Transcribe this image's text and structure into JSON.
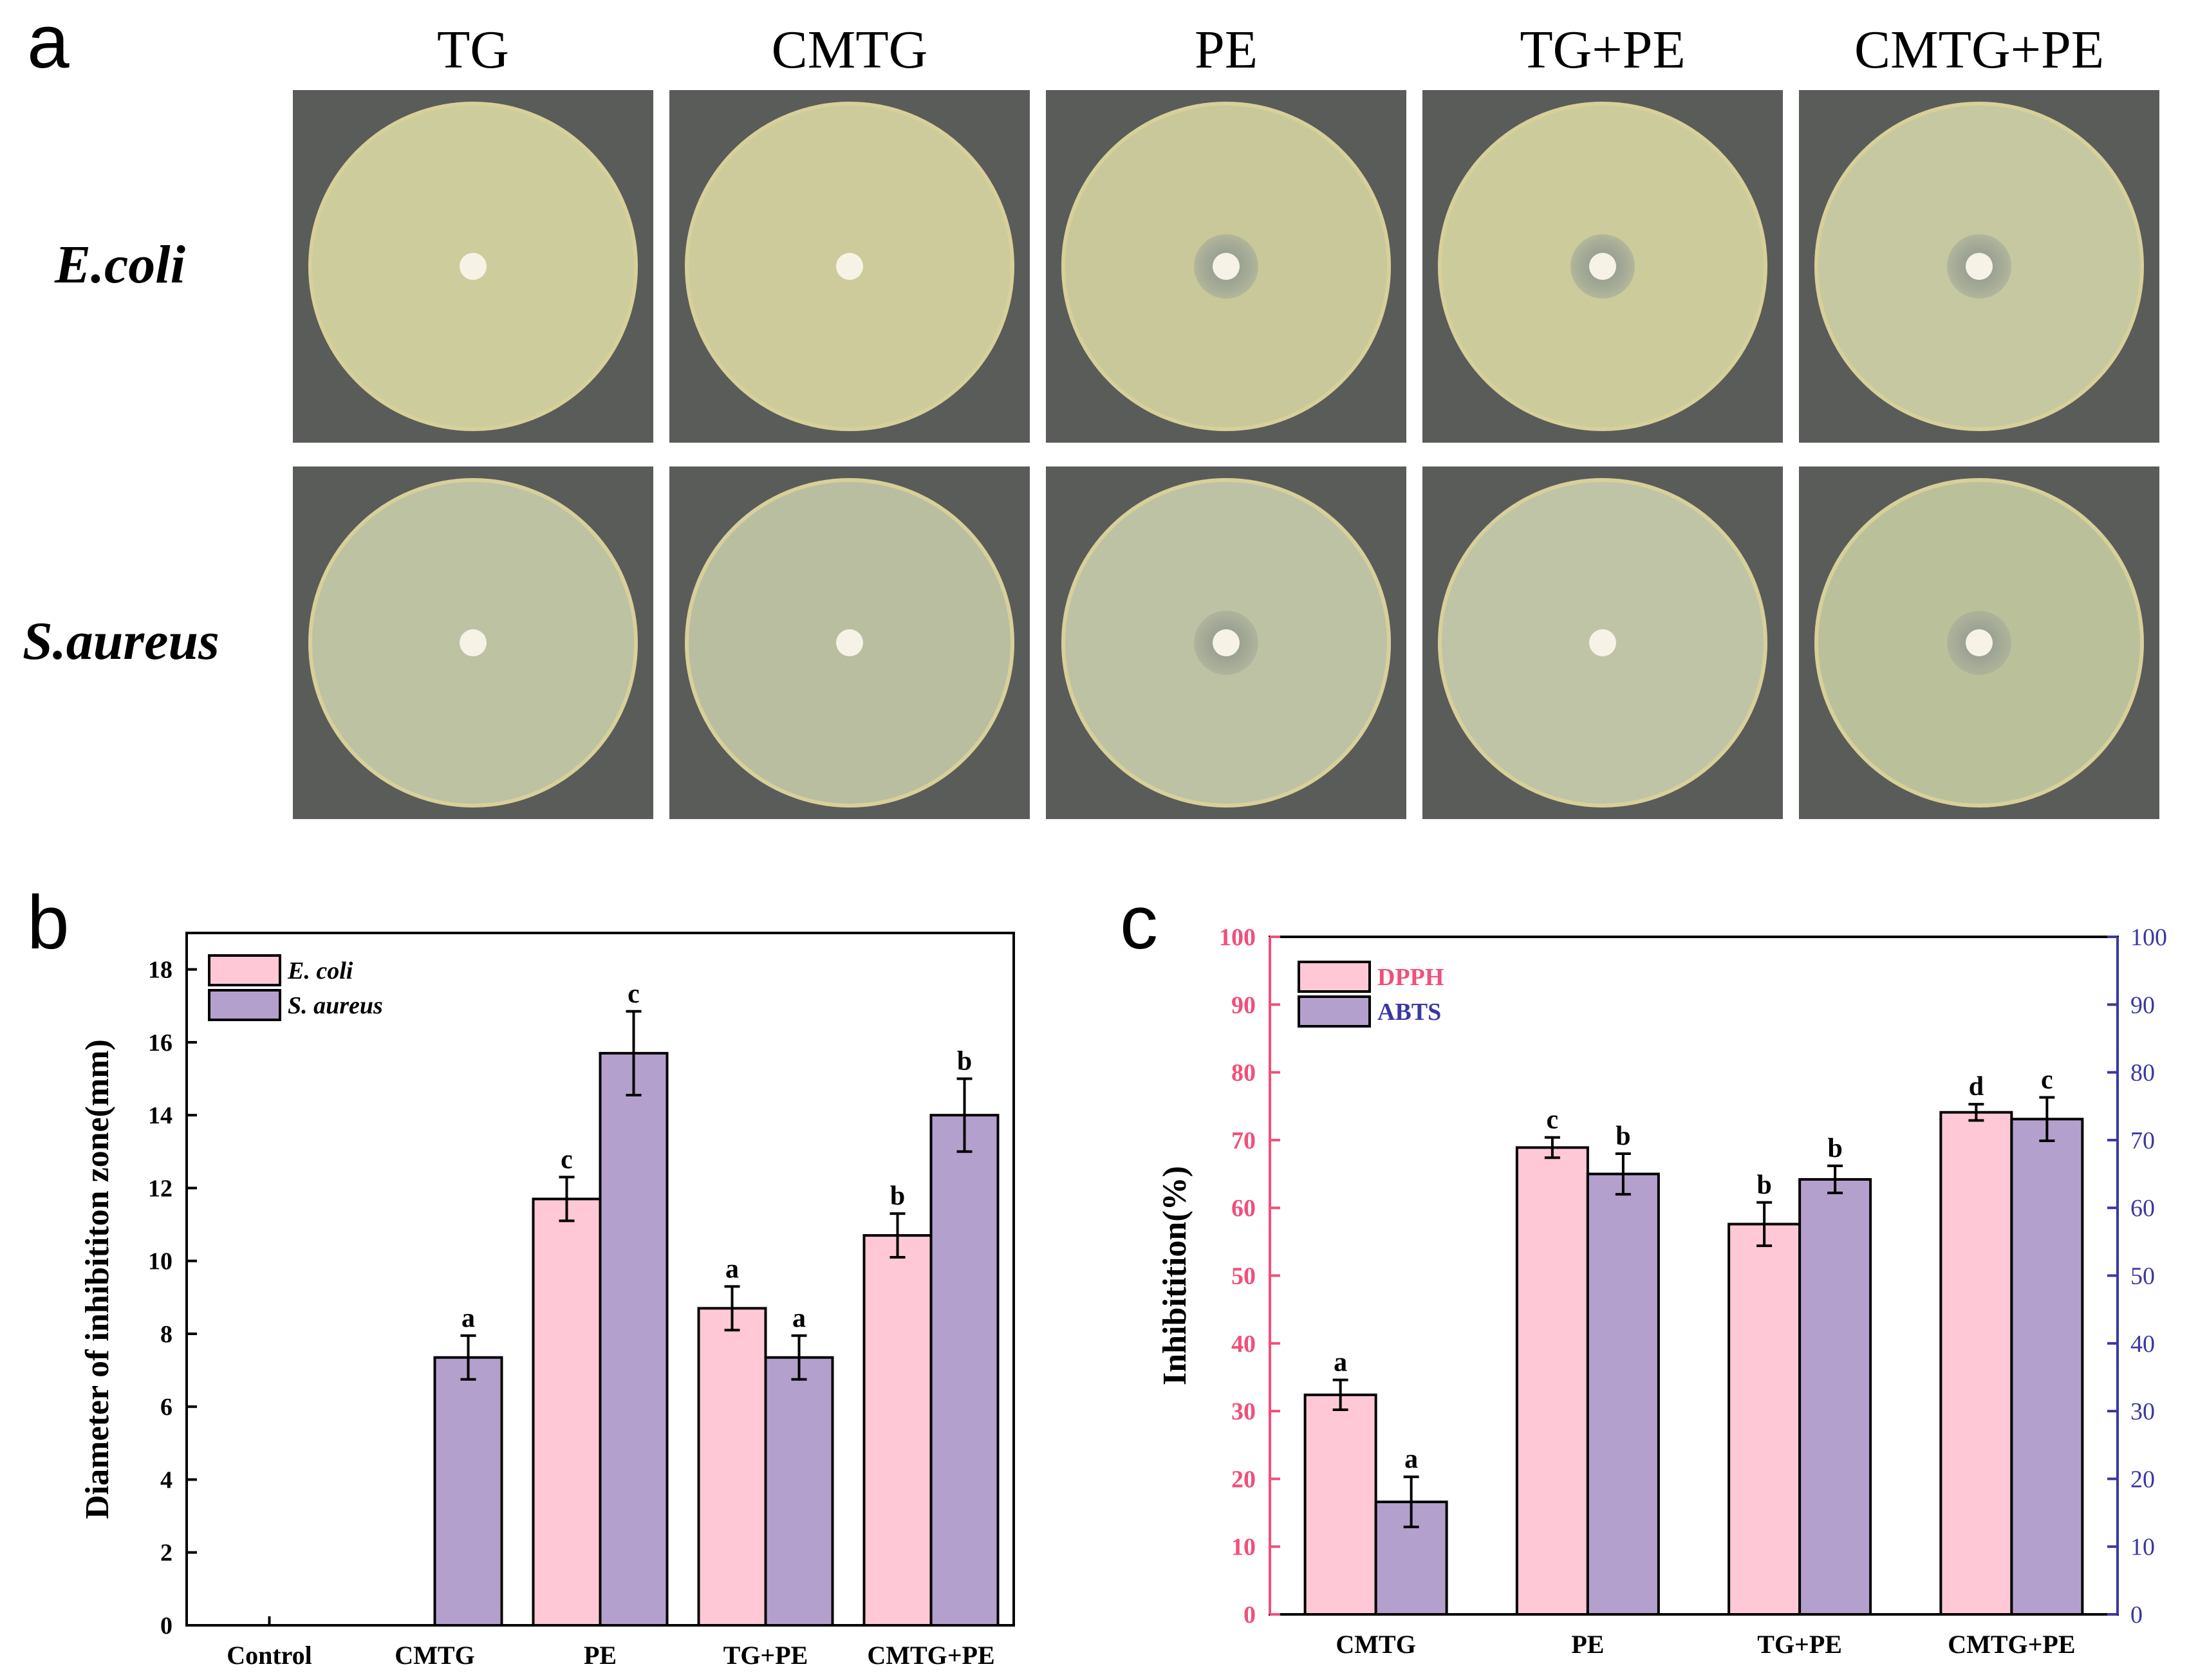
{
  "panel_a": {
    "letter": "a",
    "columns": [
      "TG",
      "CMTG",
      "PE",
      "TG+PE",
      "CMTG+PE"
    ],
    "rows": [
      "E.coli",
      "S.aureus"
    ],
    "plate_colors": {
      "E.coli": [
        "#cdcc9c",
        "#cdcb9b",
        "#c9c89a",
        "#cccb9c",
        "#c5c8a0"
      ],
      "S.aureus": [
        "#bcc2a2",
        "#b9bea0",
        "#bec2a4",
        "#c0c4a6",
        "#bac19a"
      ]
    },
    "zones": {
      "E.coli": [
        0,
        0,
        1,
        1,
        1
      ],
      "S.aureus": [
        0,
        0,
        1,
        0,
        1
      ]
    }
  },
  "panel_b": {
    "letter": "b"
  },
  "panel_c": {
    "letter": "c"
  },
  "chart_data": [
    {
      "type": "bar",
      "panel": "b",
      "ylabel": "Diameter of inhibititon zone(mm)",
      "categories": [
        "Control",
        "CMTG",
        "PE",
        "TG+PE",
        "CMTG+PE"
      ],
      "ylim": [
        0,
        19
      ],
      "yticks": [
        0,
        2,
        4,
        6,
        8,
        10,
        12,
        14,
        16,
        18
      ],
      "legend_position": "top-left",
      "series": [
        {
          "name": "E. coli",
          "color": "#ffc8d6",
          "values": [
            0,
            0,
            11.7,
            8.7,
            10.7
          ],
          "errors": [
            0,
            0,
            0.6,
            0.6,
            0.6
          ],
          "letters": [
            "",
            "",
            "c",
            "a",
            "b"
          ]
        },
        {
          "name": "S. aureus",
          "color": "#b4a0cc",
          "values": [
            0,
            7.35,
            15.7,
            7.35,
            14.0
          ],
          "errors": [
            0,
            0.6,
            1.15,
            0.6,
            1.0
          ],
          "letters": [
            "",
            "a",
            "c",
            "a",
            "b"
          ]
        }
      ]
    },
    {
      "type": "bar",
      "panel": "c",
      "ylabel": "Inhibitition(%)",
      "categories": [
        "CMTG",
        "PE",
        "TG+PE",
        "CMTG+PE"
      ],
      "ylim": [
        0,
        100
      ],
      "yticks": [
        0,
        10,
        20,
        30,
        40,
        50,
        60,
        70,
        80,
        90,
        100
      ],
      "left_axis_color": "#f0507a",
      "right_axis_color": "#3a38a0",
      "legend_position": "top-left",
      "series": [
        {
          "name": "DPPH",
          "color": "#ffc8d6",
          "label_color": "#f0507a",
          "values": [
            32.4,
            68.9,
            57.6,
            74.1
          ],
          "errors": [
            2.2,
            1.5,
            3.2,
            1.2
          ],
          "letters": [
            "a",
            "c",
            "b",
            "d"
          ]
        },
        {
          "name": "ABTS",
          "color": "#b4a0cc",
          "label_color": "#3a38a0",
          "values": [
            16.6,
            65.0,
            64.2,
            73.1
          ],
          "errors": [
            3.7,
            3.0,
            2.0,
            3.2
          ],
          "letters": [
            "a",
            "b",
            "b",
            "c"
          ]
        }
      ]
    }
  ]
}
